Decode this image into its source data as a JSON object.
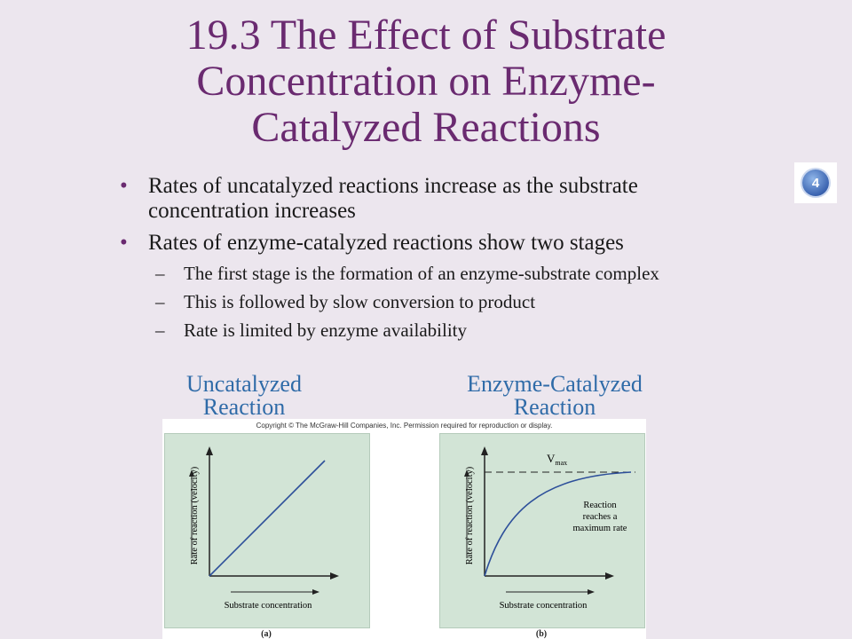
{
  "slide": {
    "title": "19.3 The Effect of Substrate Concentration on Enzyme-Catalyzed Reactions",
    "title_lines": [
      "19.3 The Effect of Substrate",
      "Concentration on Enzyme-",
      "Catalyzed Reactions"
    ],
    "badge": "4",
    "bullets": [
      {
        "text_lines": [
          "Rates of uncatalyzed reactions increase as the substrate",
          "concentration increases"
        ],
        "sub": []
      },
      {
        "text_lines": [
          "Rates of enzyme-catalyzed reactions show two stages"
        ],
        "sub": [
          "The first stage is the formation of an enzyme-substrate complex",
          "This is followed by slow conversion to product",
          "Rate is limited by enzyme availability"
        ]
      }
    ],
    "captions": {
      "left": [
        "Uncatalyzed",
        "Reaction"
      ],
      "right": [
        "Enzyme-Catalyzed",
        "Reaction"
      ]
    }
  },
  "figure": {
    "copyright": "Copyright © The McGraw-Hill Companies, Inc. Permission required for reproduction or display.",
    "panel_a": {
      "ylabel": "Rate of reaction (velocity)",
      "xlabel": "Substrate concentration",
      "label": "(a)"
    },
    "panel_b": {
      "ylabel": "Rate of reaction (velocity)",
      "xlabel": "Substrate concentration",
      "label": "(b)",
      "vmax_base": "V",
      "vmax_sub": "max",
      "annotation_lines": [
        "Reaction",
        "reaches a",
        "maximum rate"
      ]
    },
    "colors": {
      "title": "#6a2a70",
      "caption": "#2f6ba8",
      "curve": "#2d4f9a",
      "panel_bg": "#d2e4d6"
    }
  }
}
